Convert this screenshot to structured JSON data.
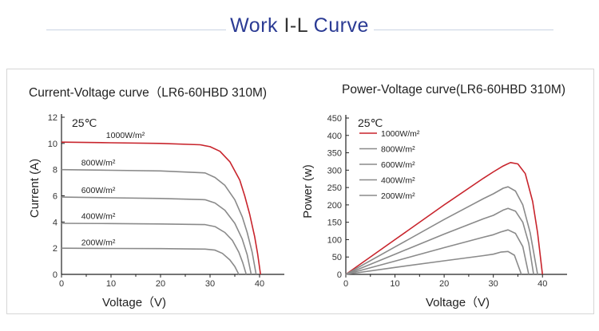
{
  "page": {
    "title_left": "Work",
    "title_mid": "I-L",
    "title_right": "Curve"
  },
  "colors": {
    "title_blue": "#2b3b94",
    "red": "#c8242c",
    "gray": "#8a8a8a"
  },
  "chart_data": [
    {
      "type": "line",
      "title": "Current-Voltage curve（LR6-60HBD 310M)",
      "xlabel": "Voltage（V)",
      "ylabel": "Current (A)",
      "xlim": [
        0,
        45
      ],
      "ylim": [
        0,
        12
      ],
      "xticks": [
        0,
        10,
        20,
        30,
        40
      ],
      "yticks": [
        0,
        2,
        4,
        6,
        8,
        10,
        12
      ],
      "annotation": "25℃",
      "series": [
        {
          "name": "1000W/m²",
          "color": "#c8242c",
          "x": [
            0,
            10,
            20,
            28,
            30,
            32,
            34,
            36,
            37,
            38,
            39,
            39.6,
            40.2
          ],
          "y": [
            10.1,
            10.05,
            10.0,
            9.9,
            9.75,
            9.4,
            8.6,
            7.2,
            6.0,
            4.6,
            2.9,
            1.6,
            0
          ]
        },
        {
          "name": "800W/m²",
          "color": "#8a8a8a",
          "x": [
            0,
            10,
            20,
            29,
            31,
            33,
            35,
            36.5,
            37.5,
            38.5,
            39.3
          ],
          "y": [
            8.0,
            7.95,
            7.9,
            7.75,
            7.4,
            6.8,
            5.7,
            4.4,
            3.2,
            1.7,
            0
          ]
        },
        {
          "name": "600W/m²",
          "color": "#8a8a8a",
          "x": [
            0,
            10,
            20,
            29,
            31,
            33,
            35,
            36.5,
            37.5,
            38.3
          ],
          "y": [
            5.9,
            5.85,
            5.8,
            5.7,
            5.45,
            4.9,
            3.9,
            2.7,
            1.5,
            0
          ]
        },
        {
          "name": "400W/m²",
          "color": "#8a8a8a",
          "x": [
            0,
            10,
            20,
            29,
            31,
            33,
            34.5,
            35.8,
            36.6,
            37.3
          ],
          "y": [
            3.9,
            3.88,
            3.85,
            3.8,
            3.65,
            3.2,
            2.6,
            1.7,
            0.9,
            0
          ]
        },
        {
          "name": "200W/m²",
          "color": "#8a8a8a",
          "x": [
            0,
            10,
            20,
            29,
            31,
            32.5,
            34,
            35,
            35.8
          ],
          "y": [
            2.0,
            1.98,
            1.97,
            1.93,
            1.85,
            1.6,
            1.1,
            0.6,
            0
          ]
        }
      ],
      "labels": [
        {
          "text": "1000W/m²",
          "x": 9,
          "y": 10.3
        },
        {
          "text": "800W/m²",
          "x": 4,
          "y": 8.2
        },
        {
          "text": "600W/m²",
          "x": 4,
          "y": 6.1
        },
        {
          "text": "400W/m²",
          "x": 4,
          "y": 4.1
        },
        {
          "text": "200W/m²",
          "x": 4,
          "y": 2.1
        }
      ]
    },
    {
      "type": "line",
      "title": "Power-Voltage curve(LR6-60HBD 310M)",
      "xlabel": "Voltage（V)",
      "ylabel": "Power (w)",
      "xlim": [
        0,
        45
      ],
      "ylim": [
        0,
        450
      ],
      "xticks": [
        0,
        10,
        20,
        30,
        40
      ],
      "yticks": [
        0,
        50,
        100,
        150,
        200,
        250,
        300,
        350,
        400,
        450
      ],
      "annotation": "25℃",
      "legend": "top-left",
      "series": [
        {
          "name": "1000W/m²",
          "color": "#c8242c",
          "x": [
            0,
            10,
            20,
            28,
            30,
            32,
            33.5,
            35,
            36.5,
            38,
            39,
            40
          ],
          "y": [
            0,
            100,
            200,
            277,
            295,
            312,
            322,
            318,
            290,
            210,
            120,
            0
          ]
        },
        {
          "name": "800W/m²",
          "color": "#8a8a8a",
          "x": [
            0,
            10,
            20,
            28,
            30,
            32,
            33,
            34.5,
            36,
            37.5,
            39
          ],
          "y": [
            0,
            79,
            158,
            218,
            232,
            248,
            252,
            240,
            200,
            120,
            0
          ]
        },
        {
          "name": "600W/m²",
          "color": "#8a8a8a",
          "x": [
            0,
            10,
            20,
            28,
            30,
            32,
            33,
            34.5,
            36,
            37.2,
            38.2
          ],
          "y": [
            0,
            58,
            116,
            160,
            170,
            185,
            190,
            182,
            150,
            90,
            0
          ]
        },
        {
          "name": "400W/m²",
          "color": "#8a8a8a",
          "x": [
            0,
            10,
            20,
            28,
            30,
            31.5,
            33,
            34.5,
            36,
            37.2
          ],
          "y": [
            0,
            38,
            77,
            107,
            114,
            122,
            128,
            118,
            80,
            0
          ]
        },
        {
          "name": "200W/m²",
          "color": "#8a8a8a",
          "x": [
            0,
            10,
            20,
            28,
            30,
            31.5,
            33,
            34.3,
            35.7
          ],
          "y": [
            0,
            20,
            39,
            54,
            58,
            64,
            66,
            55,
            0
          ]
        }
      ]
    }
  ]
}
